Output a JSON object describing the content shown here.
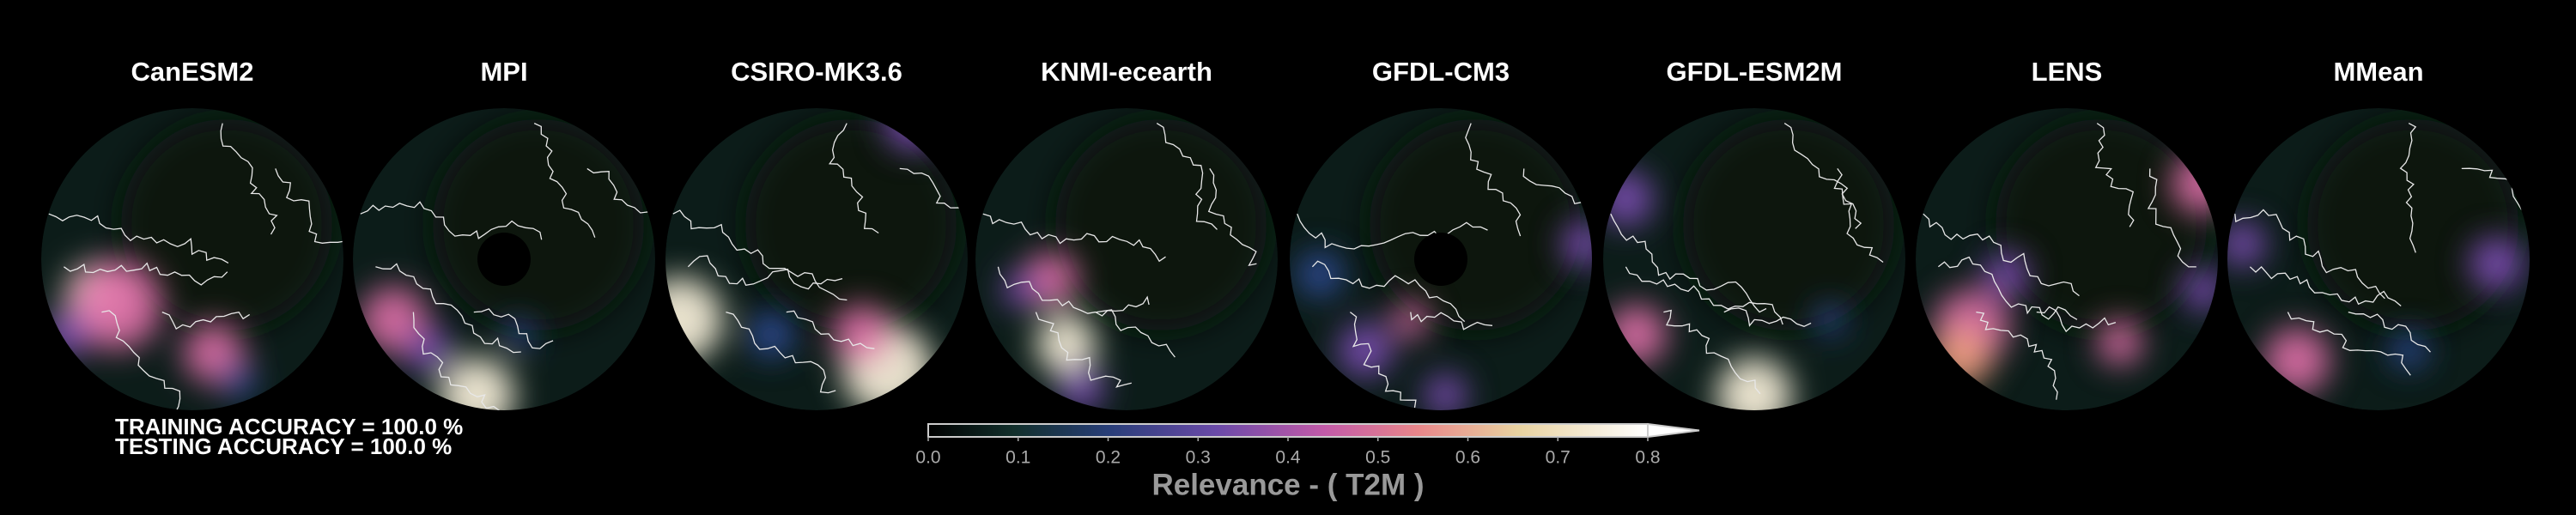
{
  "panels": [
    {
      "title": "CanESM2"
    },
    {
      "title": "MPI"
    },
    {
      "title": "CSIRO-MK3.6"
    },
    {
      "title": "KNMI-ecearth"
    },
    {
      "title": "GFDL-CM3"
    },
    {
      "title": "GFDL-ESM2M"
    },
    {
      "title": "LENS"
    },
    {
      "title": "MMean"
    }
  ],
  "accuracy": {
    "training": "TRAINING ACCURACY = 100.0 %",
    "testing": "TESTING ACCURACY = 100.0 %"
  },
  "colorbar": {
    "label": "Relevance - ( T2M )",
    "lim": [
      0,
      0.8
    ],
    "ticks": [
      {
        "value": 0,
        "label": "0.0"
      },
      {
        "value": 0.1,
        "label": "0.1"
      },
      {
        "value": 0.2,
        "label": "0.2"
      },
      {
        "value": 0.3,
        "label": "0.3"
      },
      {
        "value": 0.4,
        "label": "0.4"
      },
      {
        "value": 0.5,
        "label": "0.5"
      },
      {
        "value": 0.6,
        "label": "0.6"
      },
      {
        "value": 0.7,
        "label": "0.7"
      },
      {
        "value": 0.8,
        "label": "0.8"
      }
    ]
  }
}
